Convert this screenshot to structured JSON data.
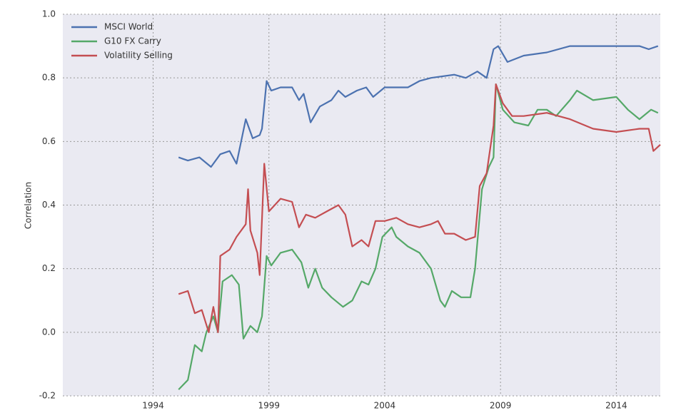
{
  "chart_data": {
    "type": "line",
    "ylabel": "Correlation",
    "xlim": [
      1990.1,
      2015.9
    ],
    "ylim": [
      -0.2,
      1.0
    ],
    "xticks": [
      1994,
      1999,
      2004,
      2009,
      2014
    ],
    "yticks": [
      {
        "value": -0.2,
        "label": "-0.2"
      },
      {
        "value": 0,
        "label": "0.0"
      },
      0.2,
      0.4,
      0.6,
      0.8,
      {
        "value": 1.0,
        "label": "1.0"
      }
    ],
    "grid": true,
    "legend": "upper left",
    "series": [
      {
        "name": "MSCI World",
        "color": "#4c72b0",
        "x": [
          1995.1,
          1995.5,
          1996,
          1996.5,
          1996.9,
          1997.3,
          1997.6,
          1997.8,
          1998.0,
          1998.3,
          1998.6,
          1998.7,
          1998.9,
          1999.1,
          1999.5,
          2000,
          2000.3,
          2000.5,
          2000.8,
          2001.2,
          2001.7,
          2002.0,
          2002.3,
          2002.8,
          2003.2,
          2003.5,
          2004,
          2005,
          2005.5,
          2006,
          2007,
          2007.5,
          2008,
          2008.4,
          2008.7,
          2008.9,
          2009.3,
          2010,
          2011,
          2012,
          2013,
          2014,
          2015,
          2015.4,
          2015.8
        ],
        "values": [
          0.55,
          0.54,
          0.55,
          0.52,
          0.56,
          0.57,
          0.53,
          0.6,
          0.67,
          0.61,
          0.62,
          0.64,
          0.79,
          0.76,
          0.77,
          0.77,
          0.73,
          0.75,
          0.66,
          0.71,
          0.73,
          0.76,
          0.74,
          0.76,
          0.77,
          0.74,
          0.77,
          0.77,
          0.79,
          0.8,
          0.81,
          0.8,
          0.82,
          0.8,
          0.89,
          0.9,
          0.85,
          0.87,
          0.88,
          0.9,
          0.9,
          0.9,
          0.9,
          0.89,
          0.9
        ]
      },
      {
        "name": "G10 FX Carry",
        "color": "#55a868",
        "x": [
          1995.1,
          1995.5,
          1995.8,
          1996.1,
          1996.3,
          1996.6,
          1996.8,
          1997.0,
          1997.4,
          1997.7,
          1997.9,
          1998.2,
          1998.5,
          1998.7,
          1998.9,
          1999.1,
          1999.5,
          2000,
          2000.4,
          2000.7,
          2001,
          2001.3,
          2001.7,
          2002.2,
          2002.6,
          2003,
          2003.3,
          2003.6,
          2003.9,
          2004.3,
          2004.5,
          2005,
          2005.5,
          2006,
          2006.4,
          2006.6,
          2006.9,
          2007.3,
          2007.7,
          2007.9,
          2008.2,
          2008.5,
          2008.7,
          2008.8,
          2009.1,
          2009.6,
          2010.2,
          2010.6,
          2011,
          2011.4,
          2012,
          2012.3,
          2013,
          2014,
          2014.5,
          2015,
          2015.5,
          2015.8
        ],
        "values": [
          -0.18,
          -0.15,
          -0.04,
          -0.06,
          0.0,
          0.05,
          0.0,
          0.16,
          0.18,
          0.15,
          -0.02,
          0.02,
          0.0,
          0.05,
          0.24,
          0.21,
          0.25,
          0.26,
          0.22,
          0.14,
          0.2,
          0.14,
          0.11,
          0.08,
          0.1,
          0.16,
          0.15,
          0.2,
          0.3,
          0.33,
          0.3,
          0.27,
          0.25,
          0.2,
          0.1,
          0.08,
          0.13,
          0.11,
          0.11,
          0.2,
          0.45,
          0.52,
          0.55,
          0.78,
          0.7,
          0.66,
          0.65,
          0.7,
          0.7,
          0.68,
          0.73,
          0.76,
          0.73,
          0.74,
          0.7,
          0.67,
          0.7,
          0.69
        ]
      },
      {
        "name": "Volatility Selling",
        "color": "#c44e52",
        "x": [
          1995.1,
          1995.5,
          1995.8,
          1996.1,
          1996.4,
          1996.6,
          1996.8,
          1996.9,
          1997.3,
          1997.6,
          1998,
          1998.1,
          1998.2,
          1998.5,
          1998.6,
          1998.8,
          1999,
          1999.5,
          2000,
          2000.3,
          2000.6,
          2001,
          2001.5,
          2002,
          2002.3,
          2002.6,
          2003,
          2003.3,
          2003.6,
          2004,
          2004.5,
          2005,
          2005.5,
          2006,
          2006.3,
          2006.6,
          2007,
          2007.5,
          2007.9,
          2008.1,
          2008.4,
          2008.7,
          2008.8,
          2009.1,
          2009.5,
          2010,
          2011,
          2011.5,
          2012,
          2013,
          2014,
          2015,
          2015.4,
          2015.6,
          2015.9
        ],
        "values": [
          0.12,
          0.13,
          0.06,
          0.07,
          0.0,
          0.08,
          0.0,
          0.24,
          0.26,
          0.3,
          0.34,
          0.45,
          0.32,
          0.25,
          0.18,
          0.53,
          0.38,
          0.42,
          0.41,
          0.33,
          0.37,
          0.36,
          0.38,
          0.4,
          0.37,
          0.27,
          0.29,
          0.27,
          0.35,
          0.35,
          0.36,
          0.34,
          0.33,
          0.34,
          0.35,
          0.31,
          0.31,
          0.29,
          0.3,
          0.46,
          0.5,
          0.65,
          0.78,
          0.72,
          0.68,
          0.68,
          0.69,
          0.68,
          0.67,
          0.64,
          0.63,
          0.64,
          0.64,
          0.57,
          0.59
        ]
      }
    ]
  }
}
